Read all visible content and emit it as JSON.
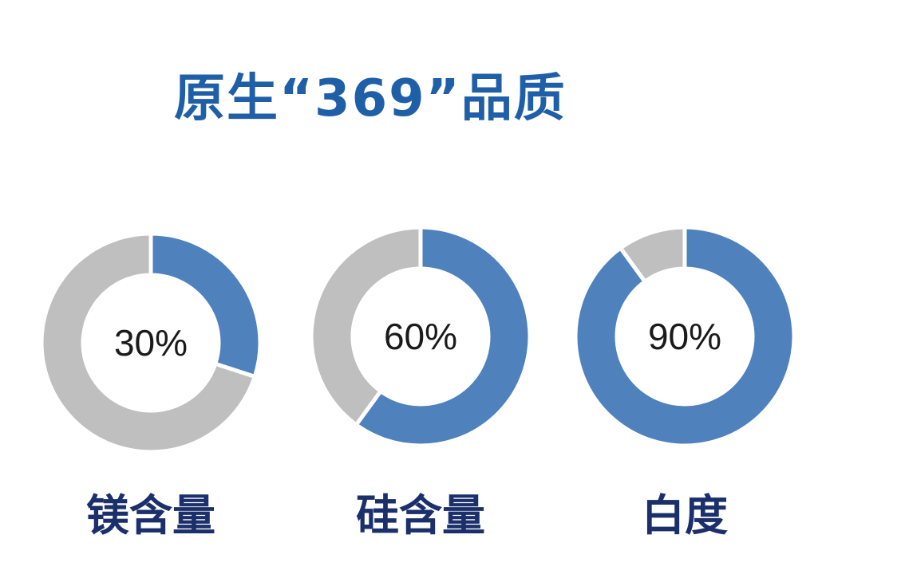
{
  "title": "原生“369”品质",
  "chart_data": {
    "type": "pie",
    "variant": "donut",
    "colors": {
      "value": "#4f81bd",
      "remainder": "#bfbfbf",
      "gap": "#ffffff"
    },
    "items": [
      {
        "category": "镁含量",
        "value": 30,
        "label": "30%"
      },
      {
        "category": "硅含量",
        "value": 60,
        "label": "60%"
      },
      {
        "category": "白度",
        "value": 90,
        "label": "90%"
      }
    ]
  }
}
